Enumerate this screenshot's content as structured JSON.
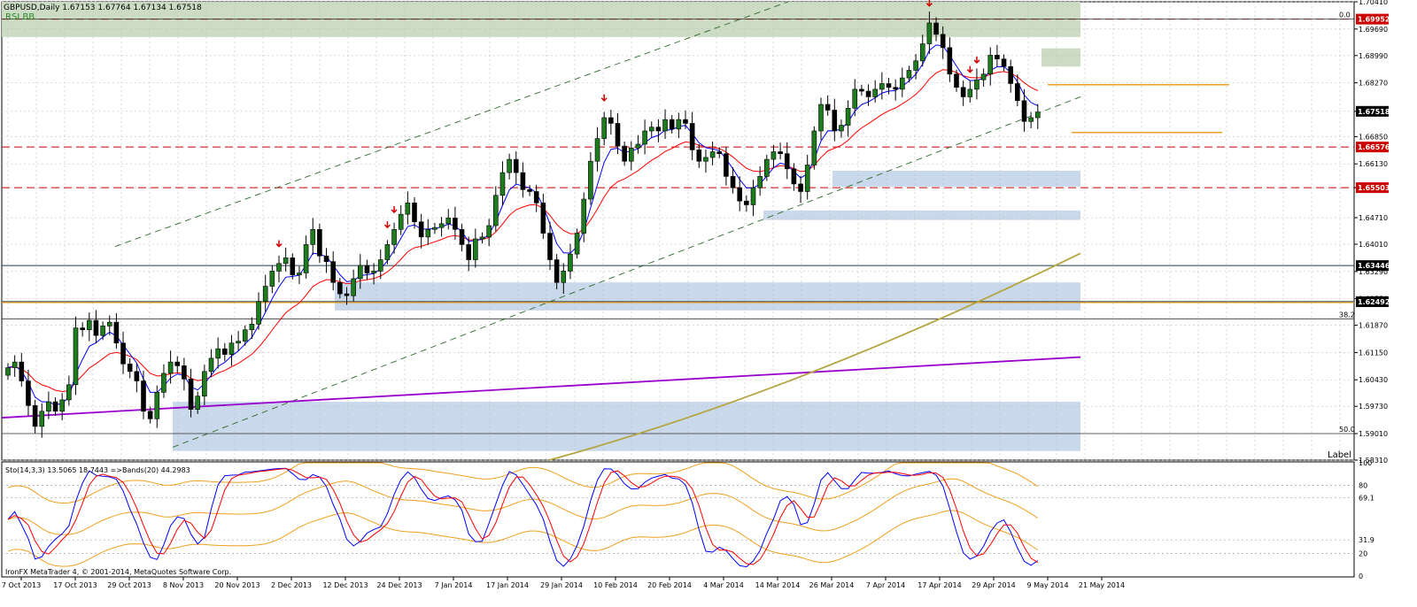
{
  "header": {
    "symbol_line": "GBPUSD,Daily  1.67153 1.67764 1.67134 1.67518",
    "indicators": "RSI  BB"
  },
  "sub_header": "Sto(14,3,3) 13.5065 18.7443  =>Bands(20) 44.2983",
  "copyright": "IronFX MetaTrader 4, © 2001-2014, MetaQuotes Software Corp.",
  "label_text": "Label",
  "fib_labels": [
    "0.0",
    "38.2",
    "50.0"
  ],
  "sub_axis_ticks": [
    "100",
    "80",
    "69.1",
    "31.9",
    "20",
    "0"
  ],
  "colors": {
    "bull": "#1e7b1e",
    "bear": "#cc0000",
    "blue_line": "#0000ff",
    "red_ma": "#ff0000",
    "ma_slow": "#b5a642",
    "ma_purple": "#9900cc",
    "zone_green": "#c9d9c0",
    "zone_blue": "#c6d6ea",
    "orange": "#f0a020",
    "grid": "#c0c0c0"
  },
  "chart_data": {
    "type": "candlestick",
    "symbol": "GBPUSD",
    "timeframe": "Daily",
    "ohlc_last": {
      "open": 1.67153,
      "high": 1.67764,
      "low": 1.67134,
      "close": 1.67518
    },
    "y_axis_ticks": [
      "1.70410",
      "1.69690",
      "1.68990",
      "1.68270",
      "1.67518",
      "1.66850",
      "1.66130",
      "1.65503",
      "1.64710",
      "1.64010",
      "1.63290",
      "1.62570",
      "1.61870",
      "1.61150",
      "1.60430",
      "1.59730",
      "1.59010",
      "1.58310"
    ],
    "price_labels": [
      {
        "text": "1.69952",
        "value": 1.69952,
        "style": "red"
      },
      {
        "text": "1.67518",
        "value": 1.67518,
        "style": "black"
      },
      {
        "text": "1.66576",
        "value": 1.66576,
        "style": "red"
      },
      {
        "text": "1.65503",
        "value": 1.65503,
        "style": "red"
      },
      {
        "text": "1.63446",
        "value": 1.63446,
        "style": "dark"
      },
      {
        "text": "1.62492",
        "value": 1.62492,
        "style": "dark"
      }
    ],
    "x_axis_labels": [
      "7 Oct 2013",
      "17 Oct 2013",
      "29 Oct 2013",
      "8 Nov 2013",
      "20 Nov 2013",
      "2 Dec 2013",
      "12 Dec 2013",
      "24 Dec 2013",
      "7 Jan 2014",
      "17 Jan 2014",
      "29 Jan 2014",
      "10 Feb 2014",
      "20 Feb 2014",
      "4 Mar 2014",
      "14 Mar 2014",
      "26 Mar 2014",
      "7 Apr 2014",
      "17 Apr 2014",
      "29 Apr 2014",
      "9 May 2014",
      "21 May 2014"
    ],
    "price_range": [
      1.5831,
      1.7041
    ],
    "stoch_range": [
      0,
      100
    ],
    "closes": [
      1.6075,
      1.609,
      1.604,
      1.5975,
      1.592,
      1.596,
      1.5985,
      1.596,
      1.599,
      1.603,
      1.618,
      1.6175,
      1.62,
      1.616,
      1.6185,
      1.6195,
      1.614,
      1.6085,
      1.6065,
      1.604,
      1.596,
      1.594,
      1.601,
      1.606,
      1.609,
      1.608,
      1.6045,
      1.5965,
      1.6,
      1.6065,
      1.61,
      1.6125,
      1.611,
      1.614,
      1.6145,
      1.6175,
      1.619,
      1.625,
      1.629,
      1.633,
      1.635,
      1.6365,
      1.632,
      1.6325,
      1.64,
      1.644,
      1.637,
      1.6355,
      1.63,
      1.627,
      1.6265,
      1.631,
      1.6345,
      1.6325,
      1.633,
      1.636,
      1.64,
      1.644,
      1.648,
      1.651,
      1.646,
      1.642,
      1.644,
      1.6445,
      1.6455,
      1.647,
      1.644,
      1.64,
      1.636,
      1.6415,
      1.642,
      1.645,
      1.653,
      1.659,
      1.6625,
      1.659,
      1.6545,
      1.654,
      1.651,
      1.643,
      1.636,
      1.63,
      1.633,
      1.6375,
      1.643,
      1.652,
      1.662,
      1.668,
      1.6735,
      1.672,
      1.666,
      1.662,
      1.6655,
      1.6665,
      1.67,
      1.671,
      1.67,
      1.673,
      1.6705,
      1.673,
      1.672,
      1.665,
      1.662,
      1.663,
      1.6645,
      1.664,
      1.658,
      1.655,
      1.6515,
      1.6505,
      1.655,
      1.658,
      1.6625,
      1.6645,
      1.664,
      1.66,
      1.656,
      1.654,
      1.661,
      1.67,
      1.677,
      1.6755,
      1.67,
      1.6715,
      1.676,
      1.681,
      1.6805,
      1.679,
      1.681,
      1.6825,
      1.6815,
      1.681,
      1.684,
      1.686,
      1.6885,
      1.693,
      1.6985,
      1.6955,
      1.692,
      1.685,
      1.6815,
      1.679,
      1.681,
      1.6835,
      1.685,
      1.69,
      1.689,
      1.687,
      1.6825,
      1.678,
      1.6725,
      1.6735,
      1.675
    ],
    "arrows_bar_index": [
      40,
      56,
      57,
      88,
      136,
      142,
      143
    ],
    "levels_dashed_red": [
      1.69952,
      1.66576,
      1.65503
    ],
    "levels_solid_dark": [
      1.63446,
      1.62492
    ],
    "fib_levels": [
      {
        "label": "0.0",
        "value": 1.69952
      },
      {
        "label": "38.2",
        "value": 1.6204
      },
      {
        "label": "50.0",
        "value": 1.5901
      }
    ]
  }
}
